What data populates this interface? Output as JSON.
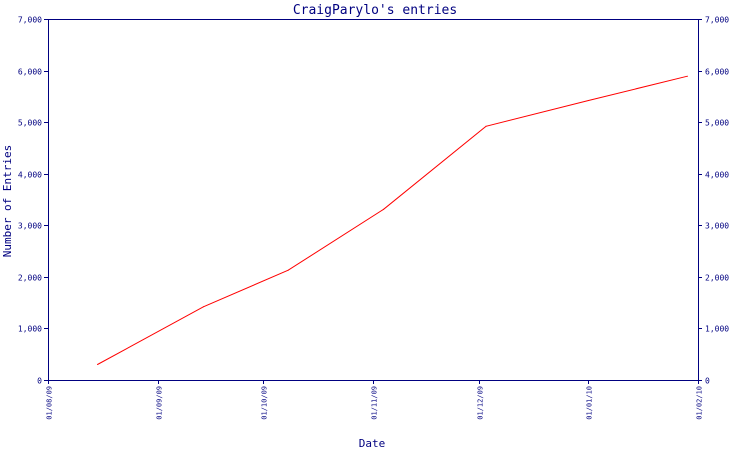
{
  "chart_data": {
    "type": "line",
    "title": "CraigParylo's entries",
    "xlabel": "Date",
    "ylabel": "Number of Entries",
    "ylim": [
      0,
      7000
    ],
    "xlim": [
      "2009-08-01",
      "2010-02-01"
    ],
    "y_ticks": [
      0,
      1000,
      2000,
      3000,
      4000,
      5000,
      6000,
      7000
    ],
    "y_tick_labels": [
      "0",
      "1,000",
      "2,000",
      "3,000",
      "4,000",
      "5,000",
      "6,000",
      "7,000"
    ],
    "x_ticks": [
      "2009-08-01",
      "2009-09-01",
      "2009-10-01",
      "2009-11-01",
      "2009-12-01",
      "2010-01-01",
      "2010-02-01"
    ],
    "x_tick_labels": [
      "01/08/09",
      "01/09/09",
      "01/10/09",
      "01/11/09",
      "01/12/09",
      "01/01/10",
      "01/02/10"
    ],
    "grid": false,
    "right_axis": true,
    "series": [
      {
        "color": "#ff0000",
        "points": [
          {
            "x": "2009-08-15",
            "y": 300
          },
          {
            "x": "2009-09-14",
            "y": 1420
          },
          {
            "x": "2009-10-08",
            "y": 2130
          },
          {
            "x": "2009-11-04",
            "y": 3310
          },
          {
            "x": "2009-12-03",
            "y": 4920
          },
          {
            "x": "2010-01-01",
            "y": 5420
          },
          {
            "x": "2010-01-29",
            "y": 5890
          }
        ]
      }
    ],
    "colors": {
      "axis": "#000080",
      "text": "#000080",
      "background": "#ffffff"
    }
  }
}
